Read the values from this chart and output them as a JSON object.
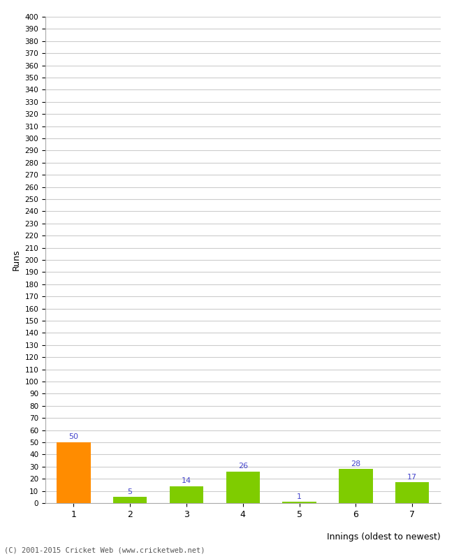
{
  "categories": [
    1,
    2,
    3,
    4,
    5,
    6,
    7
  ],
  "values": [
    50,
    5,
    14,
    26,
    1,
    28,
    17
  ],
  "bar_colors": [
    "#FF8C00",
    "#7FCC00",
    "#7FCC00",
    "#7FCC00",
    "#7FCC00",
    "#7FCC00",
    "#7FCC00"
  ],
  "xlabel": "Innings (oldest to newest)",
  "ylabel": "Runs",
  "ylim": [
    0,
    400
  ],
  "label_color": "#4444CC",
  "background_color": "#FFFFFF",
  "grid_color": "#CCCCCC",
  "footer": "(C) 2001-2015 Cricket Web (www.cricketweb.net)"
}
